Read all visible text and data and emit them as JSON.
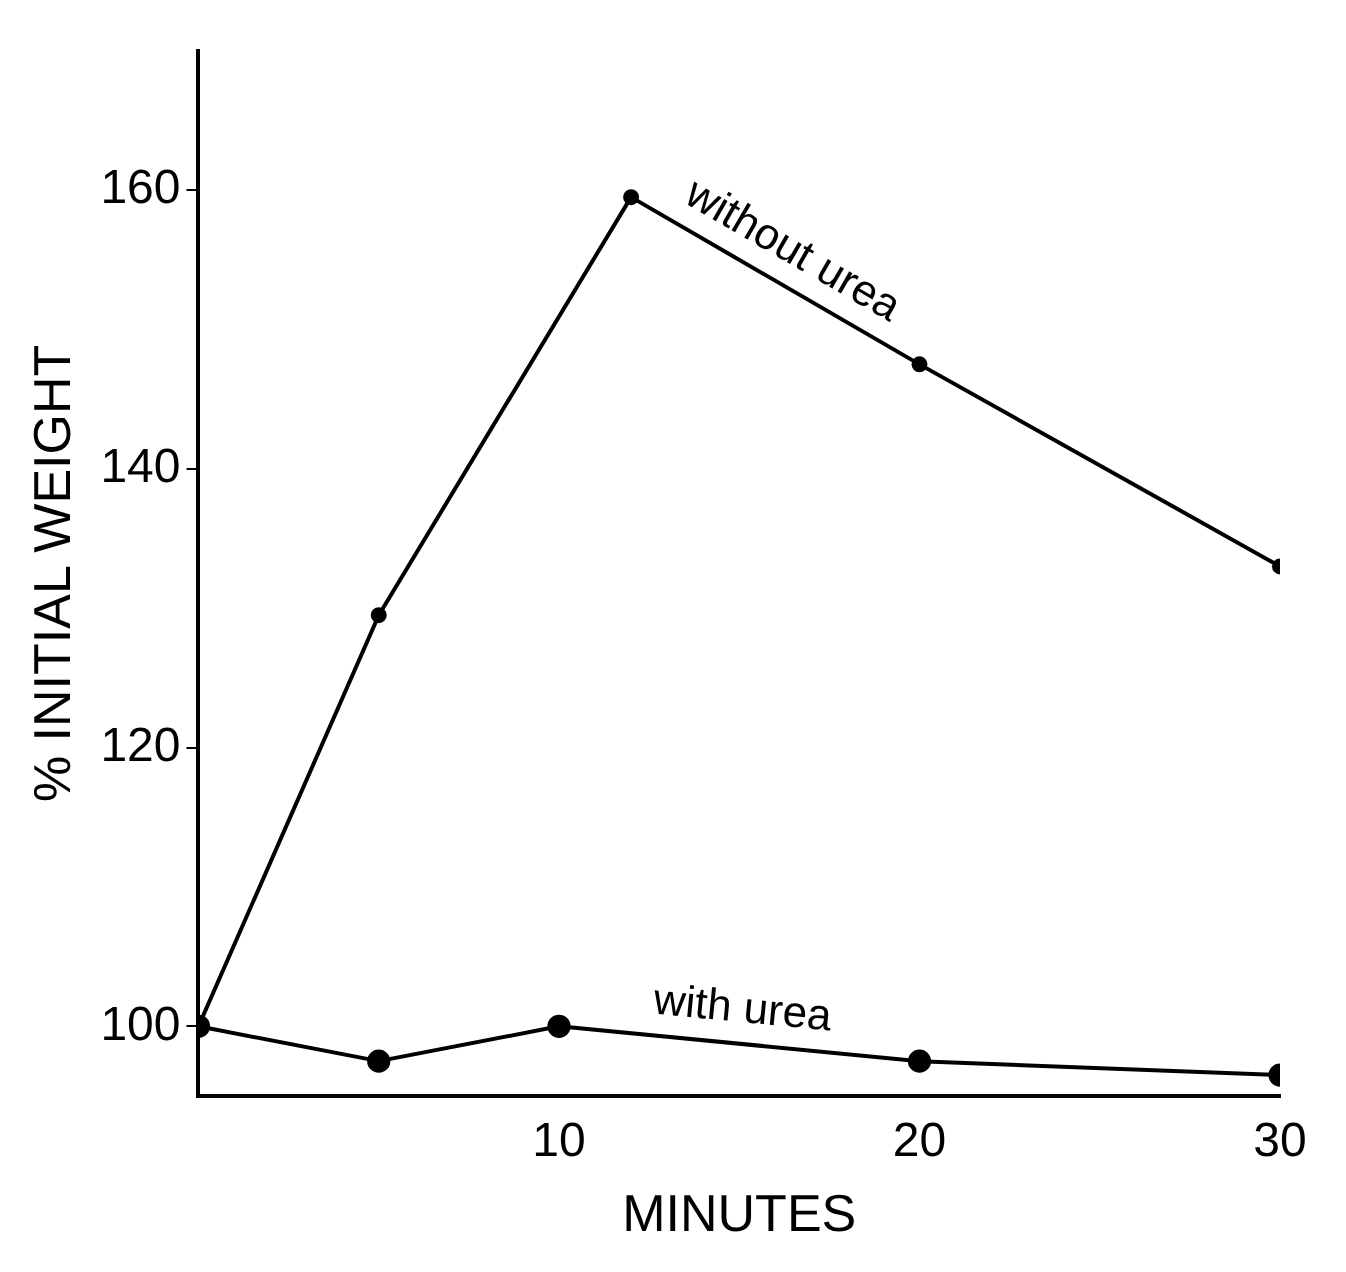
{
  "chart_data": {
    "type": "line",
    "xlabel": "MINUTES",
    "ylabel": "% INITIAL WEIGHT",
    "xlim": [
      0,
      30
    ],
    "xticks": [
      10,
      20,
      30
    ],
    "ylim": [
      95,
      170
    ],
    "yticks": [
      100,
      120,
      140,
      160
    ],
    "grid": false,
    "legend": false,
    "marker": "circle",
    "line_style": "solid",
    "series": [
      {
        "name": "without urea",
        "color": "#000000",
        "x": [
          0,
          5,
          12,
          20,
          30
        ],
        "values": [
          100,
          129.5,
          159.5,
          147.5,
          133
        ]
      },
      {
        "name": "with urea",
        "color": "#000000",
        "x": [
          0,
          5,
          10,
          20,
          30
        ],
        "values": [
          100,
          97.5,
          100,
          97.5,
          96.5
        ]
      }
    ]
  }
}
